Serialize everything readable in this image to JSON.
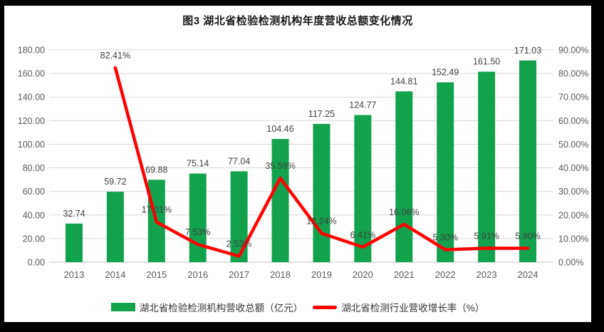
{
  "title": "图3 湖北省检验检测机构年度营收总额变化情况",
  "colors": {
    "bar": "#12A24E",
    "line": "#FF0000",
    "grid": "#D9D9D9",
    "axis_line": "#C6C6C6",
    "axis_text": "#595959",
    "data_label": "#3F3F3F",
    "frame_background": "#000000",
    "canvas_background": "#FFFFFF"
  },
  "legend": {
    "position": "bottom",
    "bar_label": "湖北省检验检测机构营收总额（亿元）",
    "line_label": "湖北省检测行业营收增长率（%）"
  },
  "chart_data": {
    "type": "combo-bar-line",
    "title": "图3 湖北省检验检测机构年度营收总额变化情况",
    "categories": [
      "2013",
      "2014",
      "2015",
      "2016",
      "2017",
      "2018",
      "2019",
      "2020",
      "2021",
      "2022",
      "2023",
      "2024"
    ],
    "series": [
      {
        "name": "湖北省检验检测机构营收总额（亿元）",
        "type": "bar",
        "axis": "left",
        "color": "#12A24E",
        "values": [
          32.74,
          59.72,
          69.88,
          75.14,
          77.04,
          104.46,
          117.25,
          124.77,
          144.81,
          152.49,
          161.5,
          171.03
        ],
        "labels": [
          "32.74",
          "59.72",
          "69.88",
          "75.14",
          "77.04",
          "104.46",
          "117.25",
          "124.77",
          "144.81",
          "152.49",
          "161.50",
          "171.03"
        ]
      },
      {
        "name": "湖北省检测行业营收增长率（%）",
        "type": "line",
        "axis": "right",
        "color": "#FF0000",
        "values": [
          null,
          82.41,
          17.01,
          7.53,
          2.53,
          35.59,
          12.24,
          6.41,
          16.06,
          5.3,
          5.91,
          5.9
        ],
        "labels": [
          null,
          "82.41%",
          "17.01%",
          "7.53%",
          "2.53%",
          "35.59%",
          "12.24%",
          "6.41%",
          "16.06%",
          "5.30%",
          "5.91%",
          "5.90%"
        ]
      }
    ],
    "left_axis": {
      "min": 0,
      "max": 180,
      "step": 20,
      "ticks": [
        "0.00",
        "20.00",
        "40.00",
        "60.00",
        "80.00",
        "100.00",
        "120.00",
        "140.00",
        "160.00",
        "180.00"
      ]
    },
    "right_axis": {
      "min": 0,
      "max": 90,
      "step": 10,
      "ticks": [
        "0.00%",
        "10.00%",
        "20.00%",
        "30.00%",
        "40.00%",
        "50.00%",
        "60.00%",
        "70.00%",
        "80.00%",
        "90.00%"
      ]
    },
    "grid": true,
    "legend_position": "bottom"
  }
}
